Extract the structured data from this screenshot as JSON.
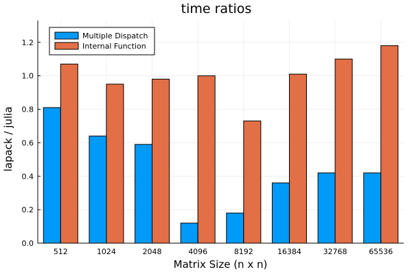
{
  "chart_data": {
    "type": "bar",
    "title": "time ratios",
    "xlabel": "Matrix Size (n x n)",
    "ylabel": "lapack / julia",
    "categories": [
      "512",
      "1024",
      "2048",
      "4096",
      "8192",
      "16384",
      "32768",
      "65536"
    ],
    "series": [
      {
        "name": "Multiple Dispatch",
        "color": "#009af9",
        "values": [
          0.81,
          0.64,
          0.59,
          0.12,
          0.18,
          0.36,
          0.42,
          0.42
        ]
      },
      {
        "name": "Internal Function",
        "color": "#e26f46",
        "values": [
          1.07,
          0.95,
          0.98,
          1.0,
          0.73,
          1.01,
          1.1,
          1.18
        ]
      }
    ],
    "ylim": [
      0,
      1.33
    ],
    "yticks": [
      "0.0",
      "0.2",
      "0.4",
      "0.6",
      "0.8",
      "1.0",
      "1.2"
    ],
    "grid": true,
    "legend_position": "top-left"
  }
}
